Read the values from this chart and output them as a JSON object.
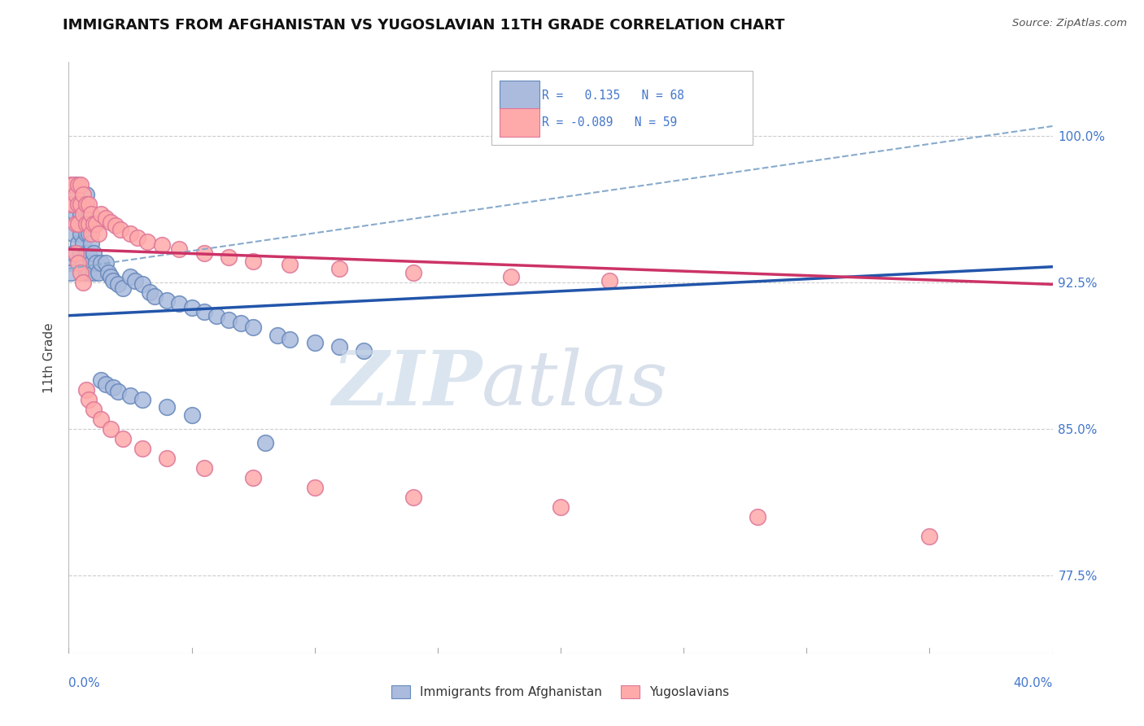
{
  "title": "IMMIGRANTS FROM AFGHANISTAN VS YUGOSLAVIAN 11TH GRADE CORRELATION CHART",
  "source": "Source: ZipAtlas.com",
  "ylabel": "11th Grade",
  "ytick_labels": [
    "100.0%",
    "92.5%",
    "85.0%",
    "77.5%"
  ],
  "ytick_values": [
    1.0,
    0.925,
    0.85,
    0.775
  ],
  "xlim": [
    0.0,
    0.4
  ],
  "ylim": [
    0.735,
    1.038
  ],
  "legend1_r": "0.135",
  "legend1_n": "68",
  "legend2_r": "-0.089",
  "legend2_n": "59",
  "blue_fill": "#AABBDD",
  "blue_edge": "#6688BB",
  "pink_fill": "#FFAAAA",
  "pink_edge": "#DD7799",
  "blue_line_color": "#2255AA",
  "pink_line_color": "#CC3366",
  "dashed_line_color": "#88AACC",
  "grid_color": "#CCCCCC",
  "title_color": "#111111",
  "source_color": "#555555",
  "axis_label_color": "#4477CC",
  "watermark_zip_color": "#DDEEFF",
  "watermark_atlas_color": "#BBCCDD",
  "title_fontsize": 13,
  "blue_scatter_x": [
    0.001,
    0.001,
    0.002,
    0.002,
    0.003,
    0.003,
    0.003,
    0.004,
    0.004,
    0.004,
    0.005,
    0.005,
    0.005,
    0.005,
    0.006,
    0.006,
    0.006,
    0.006,
    0.007,
    0.007,
    0.007,
    0.007,
    0.007,
    0.008,
    0.008,
    0.008,
    0.008,
    0.009,
    0.009,
    0.009,
    0.01,
    0.01,
    0.011,
    0.012,
    0.013,
    0.015,
    0.016,
    0.017,
    0.018,
    0.02,
    0.022,
    0.025,
    0.027,
    0.03,
    0.033,
    0.035,
    0.04,
    0.045,
    0.05,
    0.055,
    0.06,
    0.065,
    0.07,
    0.075,
    0.085,
    0.09,
    0.1,
    0.11,
    0.12,
    0.013,
    0.015,
    0.018,
    0.02,
    0.025,
    0.03,
    0.04,
    0.05,
    0.08
  ],
  "blue_scatter_y": [
    0.935,
    0.93,
    0.95,
    0.94,
    0.975,
    0.97,
    0.96,
    0.965,
    0.955,
    0.945,
    0.96,
    0.955,
    0.95,
    0.94,
    0.965,
    0.955,
    0.945,
    0.935,
    0.97,
    0.96,
    0.95,
    0.94,
    0.93,
    0.96,
    0.95,
    0.94,
    0.93,
    0.955,
    0.945,
    0.935,
    0.94,
    0.93,
    0.935,
    0.93,
    0.935,
    0.935,
    0.93,
    0.928,
    0.926,
    0.924,
    0.922,
    0.928,
    0.926,
    0.924,
    0.92,
    0.918,
    0.916,
    0.914,
    0.912,
    0.91,
    0.908,
    0.906,
    0.904,
    0.902,
    0.898,
    0.896,
    0.894,
    0.892,
    0.89,
    0.875,
    0.873,
    0.871,
    0.869,
    0.867,
    0.865,
    0.861,
    0.857,
    0.843
  ],
  "pink_scatter_x": [
    0.001,
    0.001,
    0.002,
    0.002,
    0.003,
    0.003,
    0.004,
    0.004,
    0.004,
    0.005,
    0.005,
    0.006,
    0.006,
    0.007,
    0.007,
    0.008,
    0.008,
    0.009,
    0.009,
    0.01,
    0.011,
    0.012,
    0.013,
    0.015,
    0.017,
    0.019,
    0.021,
    0.025,
    0.028,
    0.032,
    0.038,
    0.045,
    0.055,
    0.065,
    0.075,
    0.09,
    0.11,
    0.14,
    0.18,
    0.22,
    0.003,
    0.004,
    0.005,
    0.006,
    0.007,
    0.008,
    0.01,
    0.013,
    0.017,
    0.022,
    0.03,
    0.04,
    0.055,
    0.075,
    0.1,
    0.14,
    0.2,
    0.28,
    0.35
  ],
  "pink_scatter_y": [
    0.975,
    0.965,
    0.975,
    0.965,
    0.97,
    0.955,
    0.975,
    0.965,
    0.955,
    0.975,
    0.965,
    0.97,
    0.96,
    0.965,
    0.955,
    0.965,
    0.955,
    0.96,
    0.95,
    0.955,
    0.955,
    0.95,
    0.96,
    0.958,
    0.956,
    0.954,
    0.952,
    0.95,
    0.948,
    0.946,
    0.944,
    0.942,
    0.94,
    0.938,
    0.936,
    0.934,
    0.932,
    0.93,
    0.928,
    0.926,
    0.94,
    0.935,
    0.93,
    0.925,
    0.87,
    0.865,
    0.86,
    0.855,
    0.85,
    0.845,
    0.84,
    0.835,
    0.83,
    0.825,
    0.82,
    0.815,
    0.81,
    0.805,
    0.795
  ],
  "blue_trendline": [
    0.0,
    0.908,
    0.4,
    0.933
  ],
  "pink_trendline": [
    0.0,
    0.942,
    0.4,
    0.924
  ],
  "blue_dashed": [
    0.0,
    0.932,
    0.4,
    1.005
  ]
}
